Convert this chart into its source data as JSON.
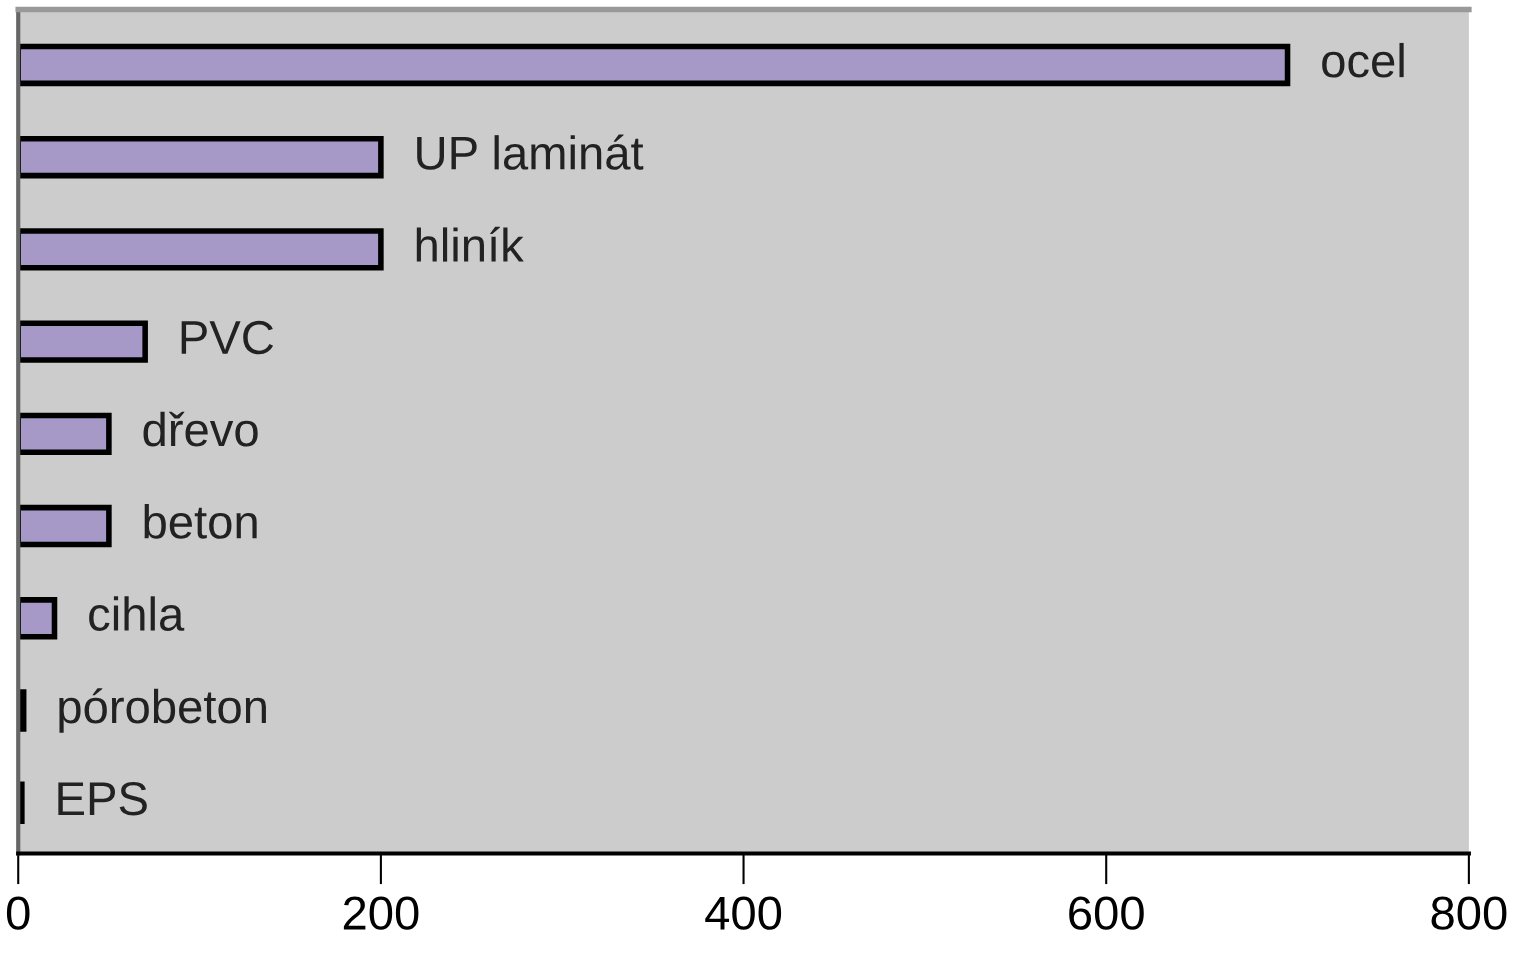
{
  "chart_data": {
    "type": "bar",
    "orientation": "horizontal",
    "categories": [
      "ocel",
      "UP laminát",
      "hliník",
      "PVC",
      "dřevo",
      "beton",
      "cihla",
      "pórobeton",
      "EPS"
    ],
    "values": [
      700,
      200,
      200,
      70,
      50,
      50,
      20,
      3,
      2
    ],
    "color": "#a699c8",
    "xlim": [
      0,
      800
    ],
    "xticks": [
      0,
      200,
      400,
      600,
      800
    ],
    "grid": false,
    "tick_labels": "x"
  }
}
